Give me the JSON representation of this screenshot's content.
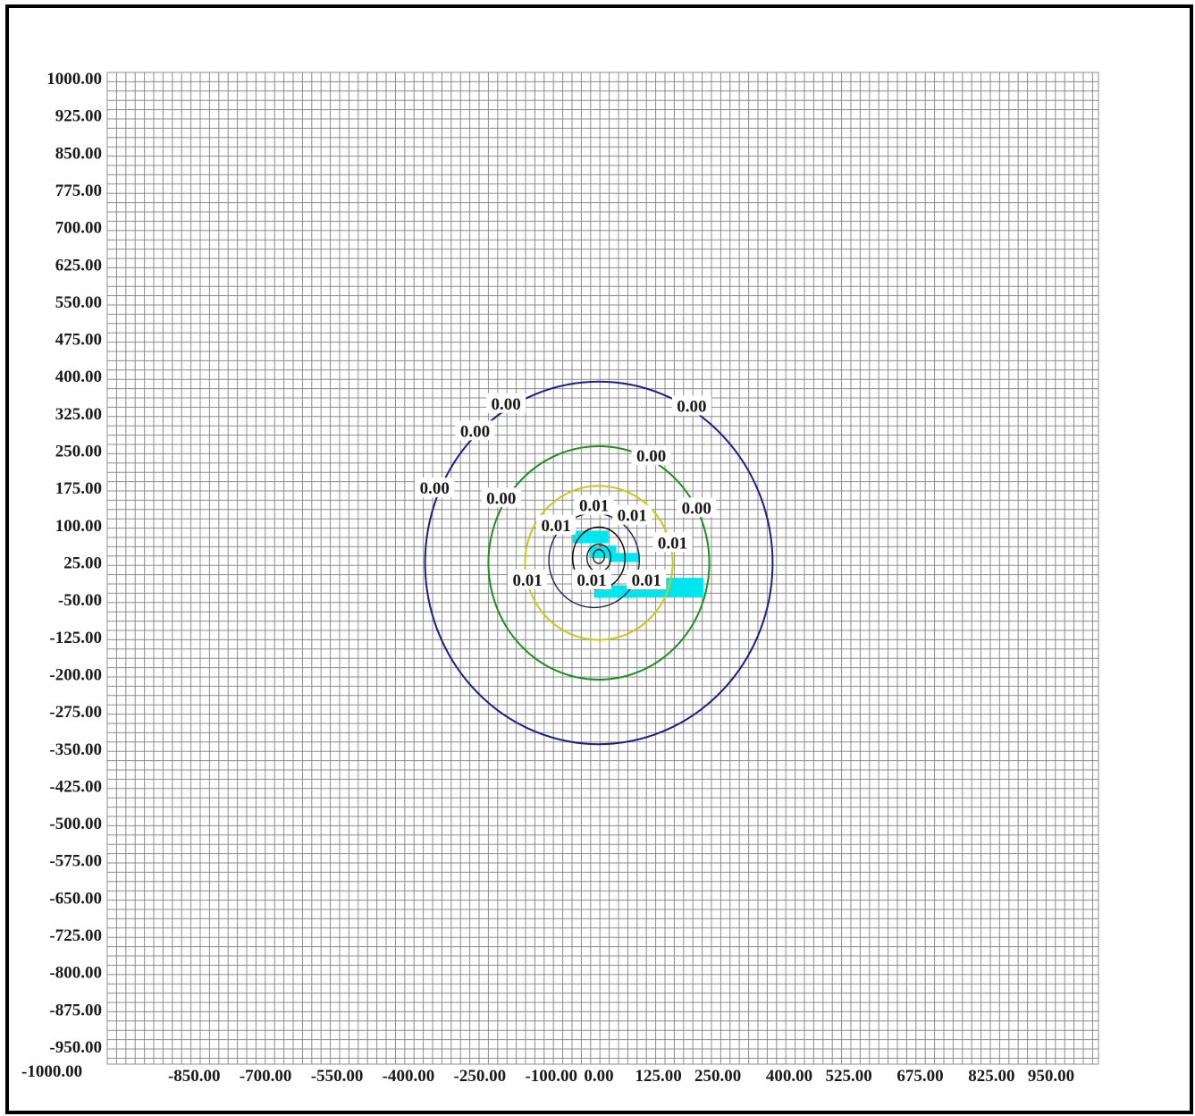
{
  "chart_data": {
    "type": "contour",
    "title": "",
    "xlabel": "",
    "ylabel": "",
    "xlim": [
      -1000,
      1000
    ],
    "ylim": [
      -1000,
      1000
    ],
    "grid": true,
    "x_tick_labels": [
      "-1000.00",
      "-850.00",
      "-700.00",
      "-550.00",
      "-400.00",
      "-250.00",
      "-100.00",
      "0.00",
      "125.00",
      "250.00",
      "400.00",
      "525.00",
      "675.00",
      "825.00",
      "950.00"
    ],
    "x_tick_values": [
      -1000,
      -850,
      -700,
      -550,
      -400,
      -250,
      -100,
      0,
      125,
      250,
      400,
      525,
      675,
      825,
      950
    ],
    "y_tick_labels": [
      "1000.00",
      "925.00",
      "850.00",
      "775.00",
      "700.00",
      "625.00",
      "550.00",
      "475.00",
      "400.00",
      "325.00",
      "250.00",
      "175.00",
      "100.00",
      "25.00",
      "-50.00",
      "-125.00",
      "-200.00",
      "-275.00",
      "-350.00",
      "-425.00",
      "-500.00",
      "-575.00",
      "-650.00",
      "-725.00",
      "-800.00",
      "-875.00",
      "-950.00"
    ],
    "y_tick_values": [
      1000,
      925,
      850,
      775,
      700,
      625,
      550,
      475,
      400,
      325,
      250,
      175,
      100,
      25,
      -50,
      -125,
      -200,
      -275,
      -350,
      -425,
      -500,
      -575,
      -650,
      -725,
      -800,
      -875,
      -950
    ],
    "source_center": [
      0,
      25
    ],
    "contours": [
      {
        "level": "0.00",
        "color": "#1c1c8c",
        "rx": 365,
        "ry": 365,
        "cx": 0,
        "cy": 25
      },
      {
        "level": "0.00",
        "color": "#1e8f1e",
        "rx": 232,
        "ry": 235,
        "cx": 0,
        "cy": 25
      },
      {
        "level": "0.01",
        "color": "#c8c81e",
        "rx": 155,
        "ry": 155,
        "cx": 0,
        "cy": 25
      },
      {
        "level": "0.01",
        "color": "#202060",
        "rx": 95,
        "ry": 95,
        "cx": -10,
        "cy": 30
      },
      {
        "level": "0.01",
        "color": "#000000",
        "rx": 55,
        "ry": 62,
        "cx": 0,
        "cy": 35
      },
      {
        "level": "0.01",
        "color": "#1a1a1a",
        "rx": 25,
        "ry": 28,
        "cx": 0,
        "cy": 35
      },
      {
        "level": "0.01",
        "color": "#1a1a1a",
        "rx": 12,
        "ry": 14,
        "cx": 0,
        "cy": 38
      }
    ],
    "contour_labels": [
      {
        "text": "0.00",
        "x": -195,
        "y": 345
      },
      {
        "text": "0.00",
        "x": -260,
        "y": 290
      },
      {
        "text": "0.00",
        "x": 195,
        "y": 340
      },
      {
        "text": "0.00",
        "x": -345,
        "y": 175
      },
      {
        "text": "0.00",
        "x": -205,
        "y": 155
      },
      {
        "text": "0.00",
        "x": 110,
        "y": 240
      },
      {
        "text": "0.00",
        "x": 205,
        "y": 135
      },
      {
        "text": "0.01",
        "x": -10,
        "y": 140
      },
      {
        "text": "0.01",
        "x": 70,
        "y": 120
      },
      {
        "text": "0.01",
        "x": -90,
        "y": 100
      },
      {
        "text": "0.01",
        "x": 155,
        "y": 65
      },
      {
        "text": "0.01",
        "x": -150,
        "y": -10
      },
      {
        "text": "0.01",
        "x": -15,
        "y": -10
      },
      {
        "text": "0.01",
        "x": 100,
        "y": -10
      }
    ],
    "colors": {
      "grid": "#8c8c8c",
      "highlight": "#00e5ee",
      "marker": "#e02020"
    }
  }
}
